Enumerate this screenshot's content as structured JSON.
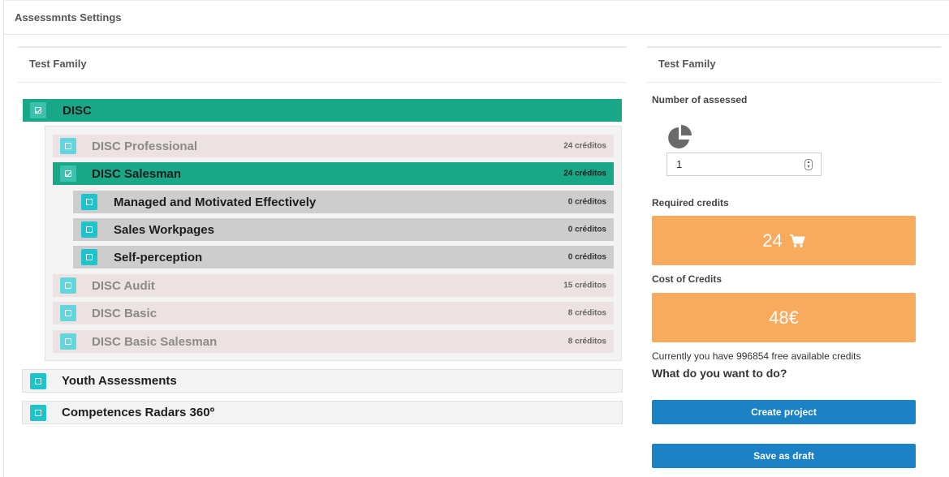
{
  "page": {
    "title": "Assessmnts Settings"
  },
  "left_panel": {
    "heading": "Test Family",
    "families": [
      {
        "label": "DISC",
        "checked": true,
        "tests": [
          {
            "label": "DISC Professional",
            "credits": "24 créditos",
            "checked": false
          },
          {
            "label": "DISC Salesman",
            "credits": "24 créditos",
            "checked": true,
            "children": [
              {
                "label": "Managed and Motivated Effectively",
                "credits": "0 créditos"
              },
              {
                "label": "Sales Workpages",
                "credits": "0 créditos"
              },
              {
                "label": "Self-perception",
                "credits": "0 créditos"
              }
            ]
          },
          {
            "label": "DISC Audit",
            "credits": "15 créditos",
            "checked": false
          },
          {
            "label": "DISC Basic",
            "credits": "8 créditos",
            "checked": false
          },
          {
            "label": "DISC Basic Salesman",
            "credits": "8 créditos",
            "checked": false
          }
        ]
      },
      {
        "label": "Youth Assessments",
        "checked": false
      },
      {
        "label": "Competences Radars 360º",
        "checked": false
      }
    ]
  },
  "right_panel": {
    "heading": "Test Family",
    "number_label": "Number of assessed",
    "number_value": "1",
    "required_label": "Required credits",
    "required_value": "24",
    "cost_label": "Cost of Credits",
    "cost_value": "48€",
    "info_text": "Currently you have 996854 free available credits",
    "question": "What do you want to do?",
    "create_button": "Create project",
    "draft_button": "Save as draft"
  },
  "colors": {
    "selected_green": "#19a887",
    "checkbox_teal": "#1fc3cb",
    "orange": "#f8ab5d",
    "button_blue": "#1c82c6"
  },
  "icons": [
    "checkbox-checked-icon",
    "checkbox-empty-icon",
    "pie-chart-icon",
    "shopping-cart-icon",
    "spinner-icon"
  ]
}
